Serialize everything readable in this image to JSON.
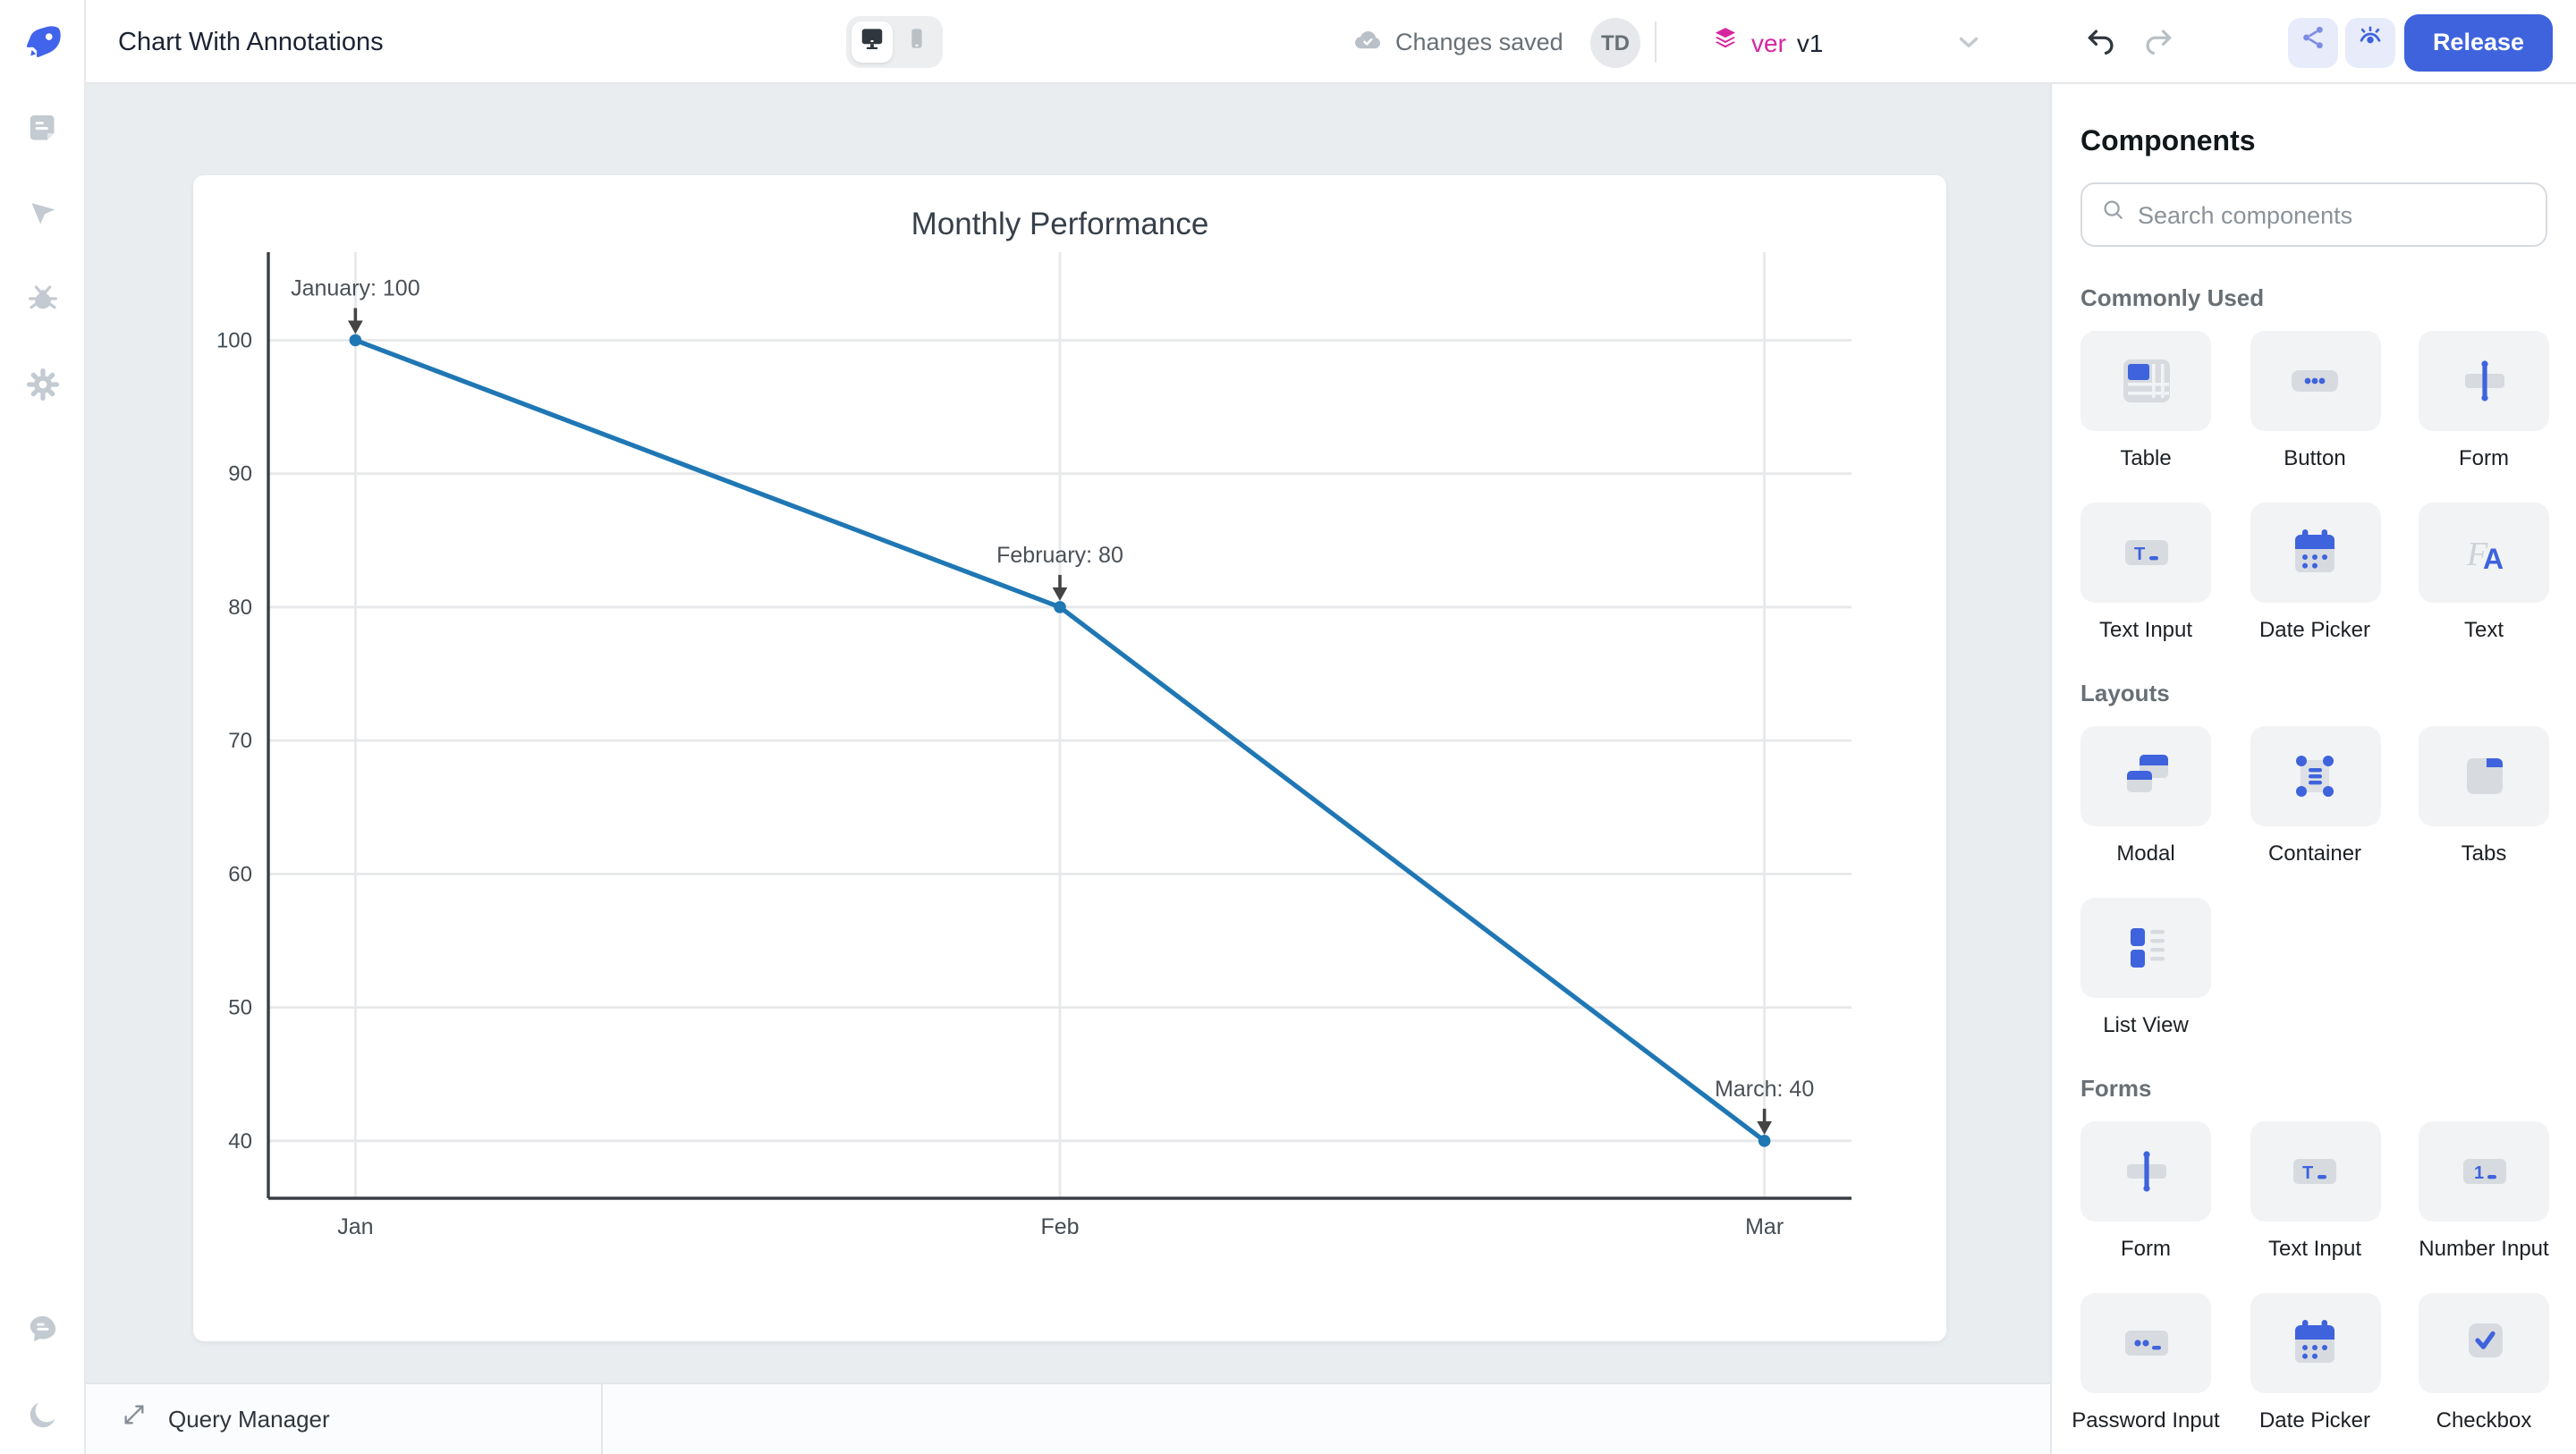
{
  "header": {
    "title": "Chart With Annotations",
    "status": "Changes saved",
    "avatar_initials": "TD",
    "version_label": "ver",
    "version_value": "v1",
    "release_label": "Release"
  },
  "query_manager": {
    "label": "Query Manager"
  },
  "components_panel": {
    "title": "Components",
    "search_placeholder": "Search components",
    "sections": [
      {
        "label": "Commonly Used",
        "items": [
          {
            "label": "Table",
            "icon": "table"
          },
          {
            "label": "Button",
            "icon": "button"
          },
          {
            "label": "Form",
            "icon": "form"
          },
          {
            "label": "Text Input",
            "icon": "text-input"
          },
          {
            "label": "Date Picker",
            "icon": "date-picker"
          },
          {
            "label": "Text",
            "icon": "text"
          }
        ]
      },
      {
        "label": "Layouts",
        "items": [
          {
            "label": "Modal",
            "icon": "modal"
          },
          {
            "label": "Container",
            "icon": "container"
          },
          {
            "label": "Tabs",
            "icon": "tabs"
          },
          {
            "label": "List View",
            "icon": "list-view"
          }
        ]
      },
      {
        "label": "Forms",
        "items": [
          {
            "label": "Form",
            "icon": "form"
          },
          {
            "label": "Text Input",
            "icon": "text-input"
          },
          {
            "label": "Number Input",
            "icon": "number-input"
          },
          {
            "label": "Password Input",
            "icon": "password-input"
          },
          {
            "label": "Date Picker",
            "icon": "date-picker"
          },
          {
            "label": "Checkbox",
            "icon": "checkbox"
          }
        ]
      }
    ]
  },
  "chart_data": {
    "type": "line",
    "title": "Monthly Performance",
    "categories": [
      "Jan",
      "Feb",
      "Mar"
    ],
    "series": [
      {
        "name": "Monthly Performance",
        "values": [
          100,
          80,
          40
        ]
      }
    ],
    "yticks": [
      100,
      90,
      80,
      70,
      60,
      50,
      40
    ],
    "ylim": [
      35.7,
      106.6
    ],
    "grid": true,
    "legend": false,
    "annotations": [
      {
        "text": "January: 100",
        "x": "Jan",
        "y": 100
      },
      {
        "text": "February: 80",
        "x": "Feb",
        "y": 80
      },
      {
        "text": "March: 40",
        "x": "Mar",
        "y": 40
      }
    ],
    "line_color": "#1f77b4",
    "annotation_color": "#444444"
  },
  "colors": {
    "accent_blue": "#3e63dd",
    "version_pink": "#d6269f",
    "canvas_bg": "#e9edf0",
    "card_bg": "#f1f3f5",
    "chart_line": "#1f77b4"
  }
}
